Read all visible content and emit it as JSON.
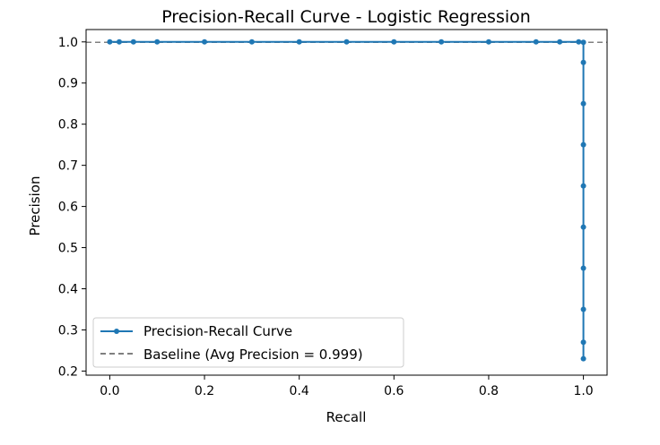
{
  "chart_data": {
    "type": "line",
    "title": "Precision-Recall Curve - Logistic Regression",
    "xlabel": "Recall",
    "ylabel": "Precision",
    "xlim": [
      -0.05,
      1.05
    ],
    "ylim": [
      0.19,
      1.03
    ],
    "x_ticks": [
      0.0,
      0.2,
      0.4,
      0.6,
      0.8,
      1.0
    ],
    "x_tick_labels": [
      "0.0",
      "0.2",
      "0.4",
      "0.6",
      "0.8",
      "1.0"
    ],
    "y_ticks": [
      0.2,
      0.3,
      0.4,
      0.5,
      0.6,
      0.7,
      0.8,
      0.9,
      1.0
    ],
    "y_tick_labels": [
      "0.2",
      "0.3",
      "0.4",
      "0.5",
      "0.6",
      "0.7",
      "0.8",
      "0.9",
      "1.0"
    ],
    "grid": false,
    "legend_position": "lower-left",
    "series": [
      {
        "name": "Precision-Recall Curve",
        "style": "solid-with-dot-markers",
        "color": "#1f77b4",
        "x": [
          0.0,
          0.02,
          0.05,
          0.1,
          0.2,
          0.3,
          0.4,
          0.5,
          0.6,
          0.7,
          0.8,
          0.9,
          0.95,
          0.99,
          1.0,
          1.0,
          1.0,
          1.0,
          1.0,
          1.0,
          1.0,
          1.0,
          1.0,
          1.0
        ],
        "y": [
          1.0,
          1.0,
          1.0,
          1.0,
          1.0,
          1.0,
          1.0,
          1.0,
          1.0,
          1.0,
          1.0,
          1.0,
          1.0,
          1.0,
          0.999,
          0.95,
          0.85,
          0.75,
          0.65,
          0.55,
          0.45,
          0.35,
          0.27,
          0.23
        ]
      },
      {
        "name": "Baseline (Avg Precision = 0.999)",
        "style": "dashed",
        "color": "#808080",
        "y_constant": 0.999
      }
    ]
  }
}
